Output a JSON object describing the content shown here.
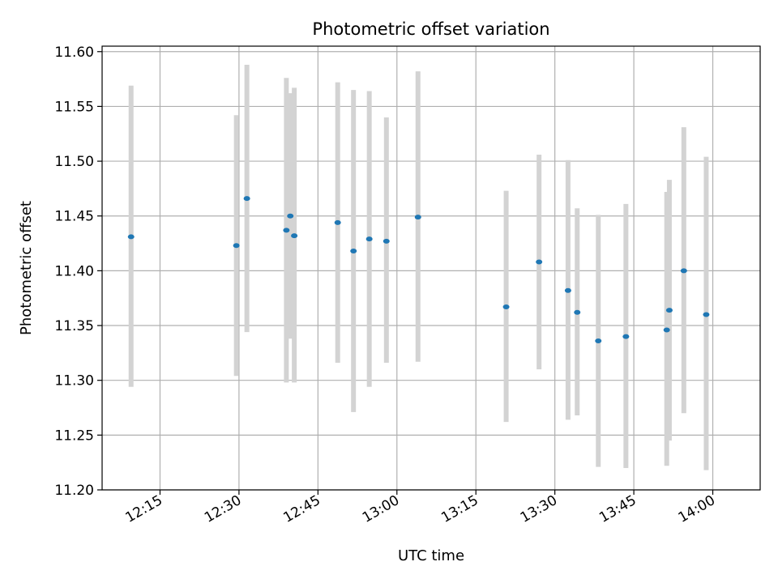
{
  "chart_data": {
    "type": "scatter",
    "title": "Photometric offset variation",
    "xlabel": "UTC time",
    "ylabel": "Photometric offset",
    "grid": true,
    "ylim": [
      11.2,
      11.605
    ],
    "xlim": [
      "12:04",
      "14:09"
    ],
    "y_ticks": [
      "11.20",
      "11.25",
      "11.30",
      "11.35",
      "11.40",
      "11.45",
      "11.50",
      "11.55",
      "11.60"
    ],
    "x_ticks": [
      "12:15",
      "12:30",
      "12:45",
      "13:00",
      "13:15",
      "13:30",
      "13:45",
      "14:00"
    ],
    "colors": {
      "point": "#1f77b4",
      "errorbar": "#d3d3d3",
      "grid": "#b0b0b0"
    },
    "points": [
      {
        "x": "12:09:30",
        "y": 11.431,
        "ylow": 11.294,
        "yhigh": 11.569
      },
      {
        "x": "12:29:30",
        "y": 11.423,
        "ylow": 11.304,
        "yhigh": 11.542
      },
      {
        "x": "12:31:30",
        "y": 11.466,
        "ylow": 11.344,
        "yhigh": 11.588
      },
      {
        "x": "12:39:00",
        "y": 11.437,
        "ylow": 11.298,
        "yhigh": 11.576
      },
      {
        "x": "12:39:45",
        "y": 11.45,
        "ylow": 11.338,
        "yhigh": 11.562
      },
      {
        "x": "12:40:30",
        "y": 11.432,
        "ylow": 11.298,
        "yhigh": 11.567
      },
      {
        "x": "12:48:45",
        "y": 11.444,
        "ylow": 11.316,
        "yhigh": 11.572
      },
      {
        "x": "12:51:45",
        "y": 11.418,
        "ylow": 11.271,
        "yhigh": 11.565
      },
      {
        "x": "12:54:45",
        "y": 11.429,
        "ylow": 11.294,
        "yhigh": 11.564
      },
      {
        "x": "12:58:00",
        "y": 11.427,
        "ylow": 11.316,
        "yhigh": 11.54
      },
      {
        "x": "13:04:00",
        "y": 11.449,
        "ylow": 11.317,
        "yhigh": 11.582
      },
      {
        "x": "13:20:45",
        "y": 11.367,
        "ylow": 11.262,
        "yhigh": 11.473
      },
      {
        "x": "13:27:00",
        "y": 11.408,
        "ylow": 11.31,
        "yhigh": 11.506
      },
      {
        "x": "13:32:30",
        "y": 11.382,
        "ylow": 11.264,
        "yhigh": 11.501
      },
      {
        "x": "13:34:15",
        "y": 11.362,
        "ylow": 11.268,
        "yhigh": 11.457
      },
      {
        "x": "13:38:15",
        "y": 11.336,
        "ylow": 11.221,
        "yhigh": 11.451
      },
      {
        "x": "13:43:30",
        "y": 11.34,
        "ylow": 11.22,
        "yhigh": 11.461
      },
      {
        "x": "13:51:15",
        "y": 11.346,
        "ylow": 11.222,
        "yhigh": 11.472
      },
      {
        "x": "13:51:45",
        "y": 11.364,
        "ylow": 11.245,
        "yhigh": 11.483
      },
      {
        "x": "13:54:30",
        "y": 11.4,
        "ylow": 11.27,
        "yhigh": 11.531
      },
      {
        "x": "13:58:45",
        "y": 11.36,
        "ylow": 11.218,
        "yhigh": 11.504
      }
    ]
  }
}
